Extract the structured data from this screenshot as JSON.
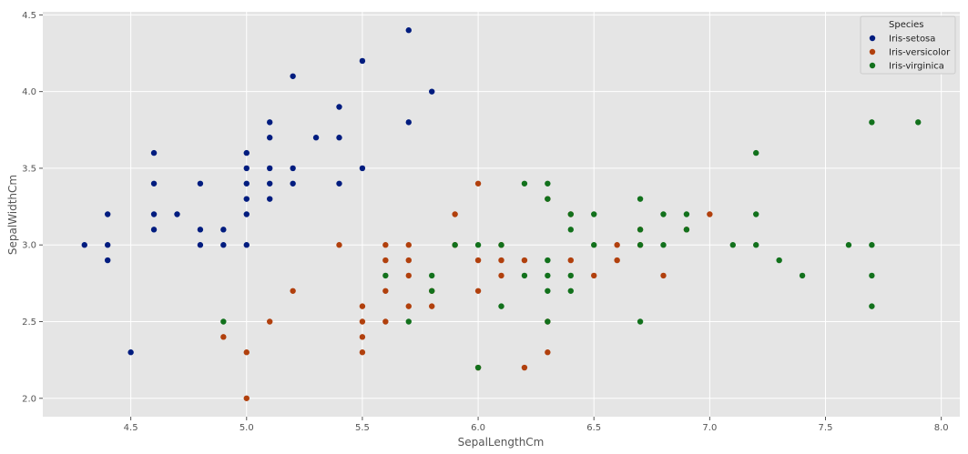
{
  "chart_data": {
    "type": "scatter",
    "title": "",
    "xlabel": "SepalLengthCm",
    "ylabel": "SepalWidthCm",
    "xlim": [
      4.12,
      8.08
    ],
    "ylim": [
      1.88,
      4.52
    ],
    "xticks": [
      4.5,
      5.0,
      5.5,
      6.0,
      6.5,
      7.0,
      7.5,
      8.0
    ],
    "xtick_labels": [
      "4.5",
      "5.0",
      "5.5",
      "6.0",
      "6.5",
      "7.0",
      "7.5",
      "8.0"
    ],
    "yticks": [
      2.0,
      2.5,
      3.0,
      3.5,
      4.0,
      4.5
    ],
    "ytick_labels": [
      "2.0",
      "2.5",
      "3.0",
      "3.5",
      "4.0",
      "4.5"
    ],
    "grid": true,
    "legend": {
      "title": "Species",
      "placement": "top-right"
    },
    "series": [
      {
        "name": "Iris-setosa",
        "color": "#001c7f",
        "points": [
          [
            4.3,
            3.0
          ],
          [
            4.4,
            2.9
          ],
          [
            4.4,
            3.0
          ],
          [
            4.4,
            3.2
          ],
          [
            4.5,
            2.3
          ],
          [
            4.6,
            3.1
          ],
          [
            4.6,
            3.2
          ],
          [
            4.6,
            3.4
          ],
          [
            4.6,
            3.6
          ],
          [
            4.7,
            3.2
          ],
          [
            4.8,
            3.0
          ],
          [
            4.8,
            3.1
          ],
          [
            4.8,
            3.4
          ],
          [
            4.9,
            3.0
          ],
          [
            4.9,
            3.1
          ],
          [
            5.0,
            3.0
          ],
          [
            5.0,
            3.2
          ],
          [
            5.0,
            3.3
          ],
          [
            5.0,
            3.4
          ],
          [
            5.0,
            3.5
          ],
          [
            5.0,
            3.6
          ],
          [
            5.1,
            3.3
          ],
          [
            5.1,
            3.4
          ],
          [
            5.1,
            3.5
          ],
          [
            5.1,
            3.7
          ],
          [
            5.1,
            3.8
          ],
          [
            5.2,
            3.4
          ],
          [
            5.2,
            3.5
          ],
          [
            5.2,
            4.1
          ],
          [
            5.3,
            3.7
          ],
          [
            5.4,
            3.4
          ],
          [
            5.4,
            3.7
          ],
          [
            5.4,
            3.9
          ],
          [
            5.5,
            3.5
          ],
          [
            5.5,
            4.2
          ],
          [
            5.7,
            3.8
          ],
          [
            5.7,
            4.4
          ],
          [
            5.8,
            4.0
          ]
        ]
      },
      {
        "name": "Iris-versicolor",
        "color": "#b1400d",
        "points": [
          [
            4.9,
            2.4
          ],
          [
            5.0,
            2.0
          ],
          [
            5.0,
            2.3
          ],
          [
            5.1,
            2.5
          ],
          [
            5.2,
            2.7
          ],
          [
            5.4,
            3.0
          ],
          [
            5.5,
            2.3
          ],
          [
            5.5,
            2.4
          ],
          [
            5.5,
            2.5
          ],
          [
            5.5,
            2.6
          ],
          [
            5.6,
            2.5
          ],
          [
            5.6,
            2.7
          ],
          [
            5.6,
            2.9
          ],
          [
            5.6,
            3.0
          ],
          [
            5.7,
            2.6
          ],
          [
            5.7,
            2.8
          ],
          [
            5.7,
            2.9
          ],
          [
            5.7,
            3.0
          ],
          [
            5.8,
            2.6
          ],
          [
            5.8,
            2.7
          ],
          [
            5.9,
            3.0
          ],
          [
            5.9,
            3.2
          ],
          [
            6.0,
            2.2
          ],
          [
            6.0,
            2.7
          ],
          [
            6.0,
            2.9
          ],
          [
            6.0,
            3.4
          ],
          [
            6.1,
            2.8
          ],
          [
            6.1,
            2.9
          ],
          [
            6.1,
            3.0
          ],
          [
            6.2,
            2.2
          ],
          [
            6.2,
            2.9
          ],
          [
            6.3,
            2.3
          ],
          [
            6.3,
            2.5
          ],
          [
            6.3,
            3.3
          ],
          [
            6.4,
            2.9
          ],
          [
            6.4,
            3.2
          ],
          [
            6.5,
            2.8
          ],
          [
            6.6,
            2.9
          ],
          [
            6.6,
            3.0
          ],
          [
            6.7,
            3.0
          ],
          [
            6.7,
            3.1
          ],
          [
            6.8,
            2.8
          ],
          [
            6.9,
            3.1
          ],
          [
            7.0,
            3.2
          ]
        ]
      },
      {
        "name": "Iris-virginica",
        "color": "#12711c",
        "points": [
          [
            4.9,
            2.5
          ],
          [
            5.6,
            2.8
          ],
          [
            5.7,
            2.5
          ],
          [
            5.8,
            2.7
          ],
          [
            5.8,
            2.8
          ],
          [
            5.9,
            3.0
          ],
          [
            6.0,
            2.2
          ],
          [
            6.0,
            3.0
          ],
          [
            6.1,
            2.6
          ],
          [
            6.1,
            3.0
          ],
          [
            6.2,
            2.8
          ],
          [
            6.2,
            3.4
          ],
          [
            6.3,
            2.5
          ],
          [
            6.3,
            2.7
          ],
          [
            6.3,
            2.8
          ],
          [
            6.3,
            2.9
          ],
          [
            6.3,
            3.3
          ],
          [
            6.3,
            3.4
          ],
          [
            6.4,
            2.7
          ],
          [
            6.4,
            2.8
          ],
          [
            6.4,
            3.1
          ],
          [
            6.4,
            3.2
          ],
          [
            6.5,
            3.0
          ],
          [
            6.5,
            3.2
          ],
          [
            6.7,
            2.5
          ],
          [
            6.7,
            3.0
          ],
          [
            6.7,
            3.1
          ],
          [
            6.7,
            3.3
          ],
          [
            6.8,
            3.0
          ],
          [
            6.8,
            3.2
          ],
          [
            6.9,
            3.1
          ],
          [
            6.9,
            3.2
          ],
          [
            7.1,
            3.0
          ],
          [
            7.2,
            3.0
          ],
          [
            7.2,
            3.2
          ],
          [
            7.2,
            3.6
          ],
          [
            7.3,
            2.9
          ],
          [
            7.4,
            2.8
          ],
          [
            7.6,
            3.0
          ],
          [
            7.7,
            2.6
          ],
          [
            7.7,
            2.8
          ],
          [
            7.7,
            3.0
          ],
          [
            7.7,
            3.8
          ],
          [
            7.9,
            3.8
          ]
        ]
      }
    ]
  }
}
